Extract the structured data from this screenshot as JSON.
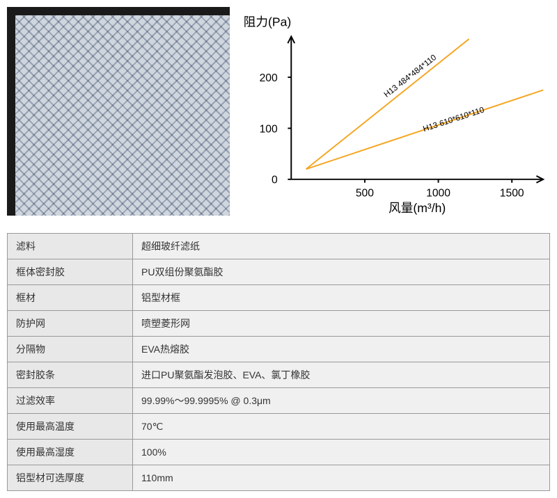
{
  "chart": {
    "type": "line",
    "y_axis_title": "阻力(Pa)",
    "x_axis_title": "风量(m³/h)",
    "x_ticks": [
      500,
      1000,
      1500
    ],
    "y_ticks": [
      0,
      100,
      200
    ],
    "xlim": [
      0,
      1700
    ],
    "ylim": [
      0,
      280
    ],
    "line_color": "#f5a623",
    "axis_color": "#000000",
    "background_color": "#ffffff",
    "axis_fontsize": 16,
    "title_fontsize": 18,
    "label_fontsize": 12,
    "line_width": 2,
    "series": [
      {
        "label": "H13 484*484*110",
        "points": [
          [
            100,
            20
          ],
          [
            1200,
            275
          ]
        ]
      },
      {
        "label": "H13 610*610*110",
        "points": [
          [
            100,
            20
          ],
          [
            1700,
            175
          ]
        ]
      }
    ]
  },
  "specs": {
    "rows": [
      {
        "key": "滤料",
        "value": "超细玻纤滤纸"
      },
      {
        "key": "框体密封胶",
        "value": "PU双组份聚氨酯胶"
      },
      {
        "key": "框材",
        "value": "铝型材框"
      },
      {
        "key": "防护网",
        "value": "喷塑菱形网"
      },
      {
        "key": "分隔物",
        "value": "EVA热熔胶"
      },
      {
        "key": "密封胶条",
        "value": "进口PU聚氨酯发泡胶、EVA、氯丁橡胶"
      },
      {
        "key": "过滤效率",
        "value": "99.99%～99.9995% @ 0.3μm"
      },
      {
        "key": "使用最高温度",
        "value": "70℃"
      },
      {
        "key": "使用最高湿度",
        "value": "100%"
      },
      {
        "key": "铝型材可选厚度",
        "value": "110mm"
      }
    ]
  },
  "image": {
    "frame_color": "#1a1a1a",
    "mesh_bg": "#d0d6de",
    "mesh_line": "#b8c0cc"
  }
}
